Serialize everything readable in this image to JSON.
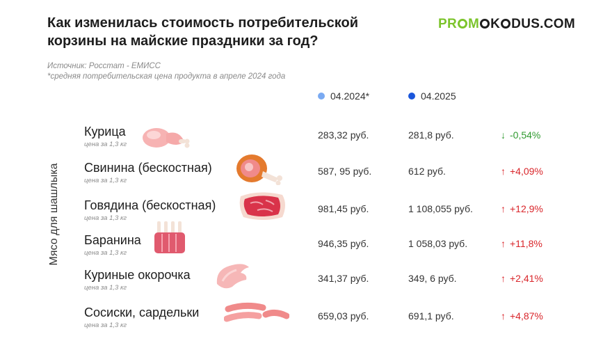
{
  "title": "Как изменилась стоимость потребительской корзины на майские праздники за год?",
  "logo": {
    "part1": "PR",
    "part2": "M",
    "part3": "K",
    "part4": "DUS.COM"
  },
  "source": {
    "line1": "Источник: Росстат - ЕМИСС",
    "line2": "*средняя потребительская цена продукта в апреле 2024 года"
  },
  "legend": {
    "col2024": {
      "label": "04.2024*",
      "color": "#7aaaf2"
    },
    "col2025": {
      "label": "04.2025",
      "color": "#1a56db"
    }
  },
  "side_label": "Мясо для шашлыка",
  "colors": {
    "up": "#d9252a",
    "down": "#2f9a2f",
    "logo_green": "#7cc42c"
  },
  "rows": [
    {
      "name": "Курица",
      "unit": "цена за 1,3 кг",
      "price_2024": "283,32 руб.",
      "price_2025": "281,8 руб.",
      "direction": "down",
      "arrow": "↓",
      "change": "-0,54%",
      "icon": "chicken-leg-icon"
    },
    {
      "name": "Свинина (бескостная)",
      "unit": "цена за 1,3 кг",
      "price_2024": "587, 95 руб.",
      "price_2025": "612 руб.",
      "direction": "up",
      "arrow": "↑",
      "change": "+4,09%",
      "icon": "ham-icon"
    },
    {
      "name": "Говядина (бескостная)",
      "unit": "цена за 1,3 кг",
      "price_2024": "981,45 руб.",
      "price_2025": "1 108,055 руб.",
      "direction": "up",
      "arrow": "↑",
      "change": "+12,9%",
      "icon": "steak-icon"
    },
    {
      "name": "Баранина",
      "unit": "цена за 1,3 кг",
      "price_2024": "946,35 руб.",
      "price_2025": "1 058,03 руб.",
      "direction": "up",
      "arrow": "↑",
      "change": "+11,8%",
      "icon": "lamb-rack-icon"
    },
    {
      "name": "Куриные окорочка",
      "unit": "цена за 1,3 кг",
      "price_2024": "341,37 руб.",
      "price_2025": "349, 6 руб.",
      "direction": "up",
      "arrow": "↑",
      "change": "+2,41%",
      "icon": "chicken-wing-icon"
    },
    {
      "name": "Сосиски, сардельки",
      "unit": "цена за 1,3 кг",
      "price_2024": "659,03 руб.",
      "price_2025": "691,1 руб.",
      "direction": "up",
      "arrow": "↑",
      "change": "+4,87%",
      "icon": "sausages-icon"
    }
  ]
}
